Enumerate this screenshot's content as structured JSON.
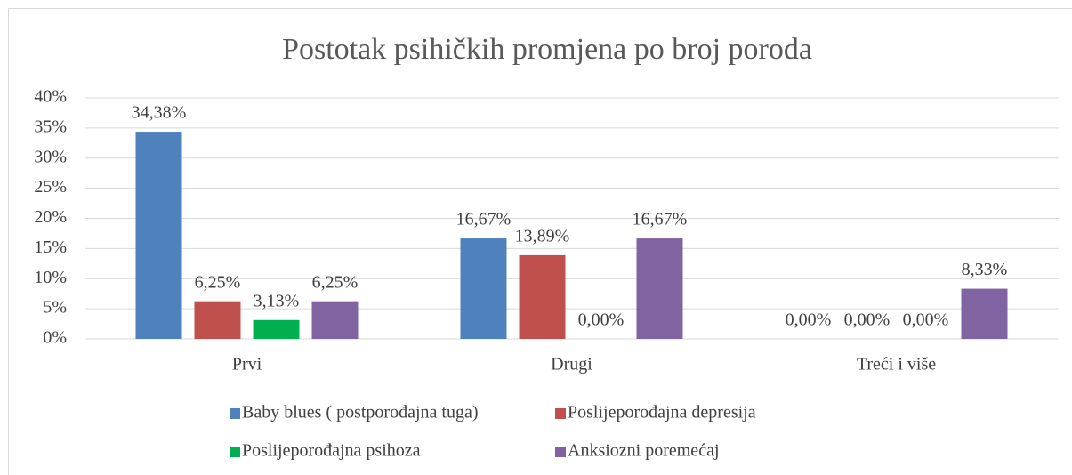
{
  "chart_data": {
    "type": "bar",
    "title": "Postotak psihičkih promjena po broj poroda",
    "categories": [
      "Prvi",
      "Drugi",
      "Treći i više"
    ],
    "series": [
      {
        "name": "Baby blues ( postporođajna tuga)",
        "color": "#4f81bd",
        "values": [
          34.38,
          16.67,
          0
        ],
        "value_labels": [
          "34,38%",
          "16,67%",
          "0,00%"
        ]
      },
      {
        "name": "Poslijeporođajna depresija",
        "color": "#c0504d",
        "values": [
          6.25,
          13.89,
          0
        ],
        "value_labels": [
          "6,25%",
          "13,89%",
          "0,00%"
        ]
      },
      {
        "name": "Poslijeporođajna psihoza",
        "color": "#00b050",
        "values": [
          3.13,
          0,
          0
        ],
        "value_labels": [
          "3,13%",
          "0,00%",
          "0,00%"
        ]
      },
      {
        "name": "Anksiozni poremećaj",
        "color": "#8064a2",
        "values": [
          6.25,
          16.67,
          8.33
        ],
        "value_labels": [
          "6,25%",
          "16,67%",
          "8,33%"
        ]
      }
    ],
    "ylim": [
      0,
      40
    ],
    "yticks": [
      {
        "value": 0,
        "label": "0%"
      },
      {
        "value": 5,
        "label": "5%"
      },
      {
        "value": 10,
        "label": "10%"
      },
      {
        "value": 15,
        "label": "15%"
      },
      {
        "value": 20,
        "label": "20%"
      },
      {
        "value": 25,
        "label": "25%"
      },
      {
        "value": 30,
        "label": "30%"
      },
      {
        "value": 35,
        "label": "35%"
      },
      {
        "value": 40,
        "label": "40%"
      }
    ],
    "grid": true,
    "legend": "bottom"
  }
}
